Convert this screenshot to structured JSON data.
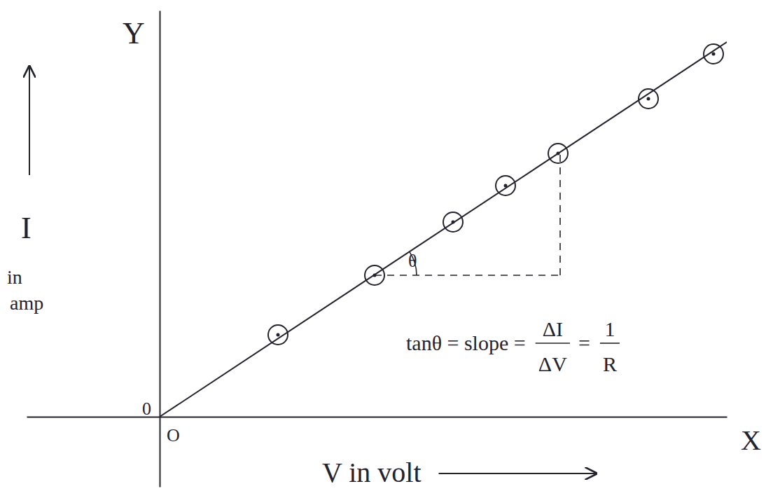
{
  "chart_data": {
    "type": "scatter",
    "x_axis_name": "X",
    "y_axis_name": "Y",
    "x_label": "V in volt",
    "y_label_lines": [
      "I",
      "in",
      "amp"
    ],
    "origin_labels": [
      "0",
      "O"
    ],
    "xlim": [
      -1.9,
      8.1
    ],
    "ylim": [
      -1,
      5.8
    ],
    "tick_labels": false,
    "grid": false,
    "series": [
      {
        "type": "scatter",
        "marker": "circle",
        "color": "#23232e",
        "x": [
          1.69,
          3.07,
          4.19,
          4.94,
          5.69,
          6.98,
          7.91
        ],
        "values": [
          1.17,
          2.02,
          2.78,
          3.3,
          3.76,
          4.54,
          5.18
        ]
      },
      {
        "type": "line",
        "line_style": "solid",
        "color": "#23232e",
        "x": [
          0,
          8.1
        ],
        "values": [
          0,
          5.35
        ]
      }
    ],
    "slope_triangle": {
      "x": [
        3.07,
        5.72
      ],
      "y": [
        2.02,
        3.76
      ],
      "line_style": "dashed"
    },
    "angle_label": "θ",
    "annotation": {
      "text": "tanθ = slope =",
      "fractions": [
        [
          "ΔI",
          "ΔV"
        ],
        [
          "1",
          "R"
        ]
      ],
      "joiner": "="
    }
  }
}
